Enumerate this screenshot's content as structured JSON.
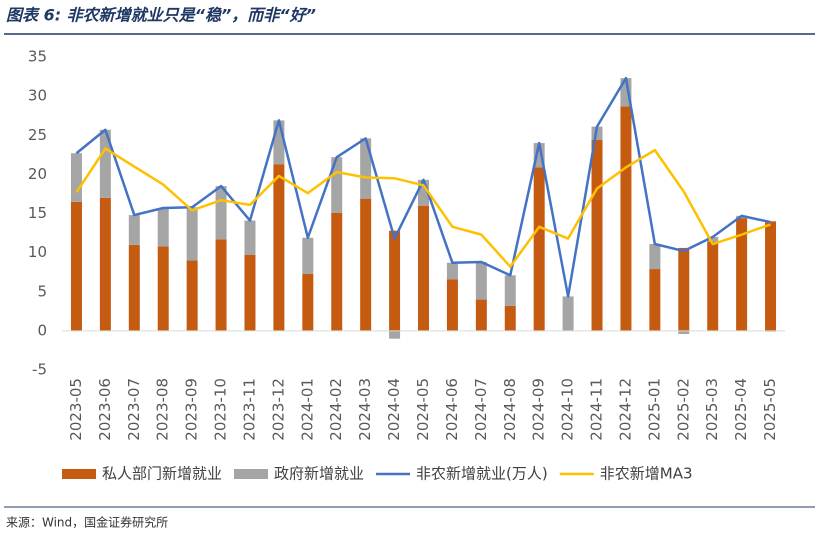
{
  "chart_data": {
    "type": "bar",
    "title": "图表 6: 非农新增就业只是“稳”，而非“好”",
    "source": "来源：Wind，国金证券研究所",
    "categories": [
      "2023-05",
      "2023-06",
      "2023-07",
      "2023-08",
      "2023-09",
      "2023-10",
      "2023-11",
      "2023-12",
      "2024-01",
      "2024-02",
      "2024-03",
      "2024-04",
      "2024-05",
      "2024-06",
      "2024-07",
      "2024-08",
      "2024-09",
      "2024-10",
      "2024-11",
      "2024-12",
      "2025-01",
      "2025-02",
      "2025-03",
      "2025-04",
      "2025-05"
    ],
    "ylim": [
      -5,
      35
    ],
    "yticks": [
      -5,
      0,
      5,
      10,
      15,
      20,
      25,
      30,
      35
    ],
    "grid": false,
    "series": [
      {
        "name": "私人部门新增就业",
        "type": "bar",
        "color": "#c55a11",
        "values": [
          16.5,
          17,
          11,
          10.8,
          9,
          11.7,
          9.7,
          21.3,
          7.3,
          15.1,
          16.9,
          12.8,
          16,
          6.6,
          4,
          3.2,
          20.9,
          0,
          24.4,
          28.7,
          7.9,
          10.6,
          11.4,
          14.4,
          14
        ]
      },
      {
        "name": "政府新增就业",
        "type": "bar",
        "color": "#a5a5a5",
        "values": [
          6.2,
          8.7,
          3.8,
          4.9,
          6.8,
          6.8,
          4.4,
          5.6,
          4.6,
          7.1,
          7.7,
          -1,
          3.3,
          2.1,
          4.8,
          3.9,
          3.1,
          4.4,
          1.7,
          3.6,
          3.2,
          -0.4,
          0.6,
          0.3,
          -0.1
        ]
      },
      {
        "name": "非农新增就业(万人)",
        "type": "line",
        "color": "#4472c4",
        "values": [
          22.7,
          25.7,
          14.8,
          15.7,
          15.8,
          18.5,
          14.1,
          26.9,
          11.9,
          22.2,
          24.6,
          11.8,
          19.3,
          8.7,
          8.8,
          7.1,
          24,
          4.4,
          26.1,
          32.3,
          11.1,
          10.2,
          12,
          14.7,
          13.9
        ]
      },
      {
        "name": "非农新增MA3",
        "type": "line",
        "color": "#ffc000",
        "values": [
          17.7,
          23.3,
          21,
          18.7,
          15.4,
          16.7,
          16.1,
          19.8,
          17.6,
          20.3,
          19.6,
          19.5,
          18.6,
          13.3,
          12.3,
          8.2,
          13.3,
          11.8,
          18.2,
          20.9,
          23.1,
          17.8,
          11.1,
          12.3,
          13.6
        ]
      }
    ]
  }
}
